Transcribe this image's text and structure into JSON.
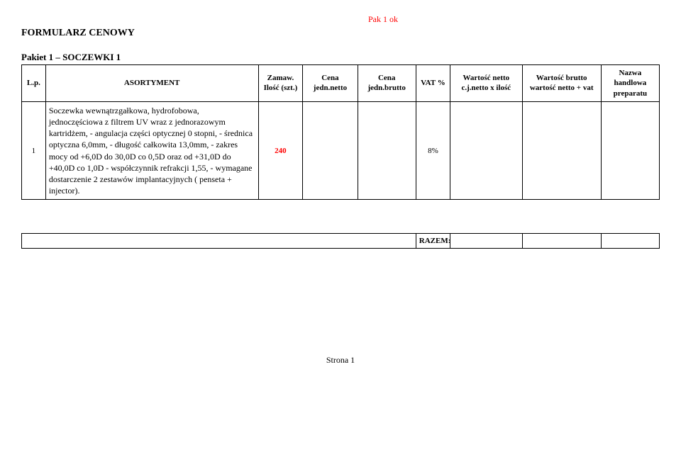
{
  "top_note": "Pak 1 ok",
  "form_title": "FORMULARZ CENOWY",
  "packet_title": "Pakiet 1 – SOCZEWKI 1",
  "headers": {
    "lp": "L.p.",
    "asortyment": "ASORTYMENT",
    "qty": "Zamaw. Ilość (szt.)",
    "cena_netto": "Cena jedn.netto",
    "cena_brutto": "Cena jedn.brutto",
    "vat": "VAT %",
    "wartosc_netto": "Wartość netto c.j.netto x ilość",
    "wartosc_brutto": "Wartość brutto wartość netto + vat",
    "nazwa": "Nazwa handlowa preparatu"
  },
  "rows": [
    {
      "lp": "1",
      "desc": "Soczewka wewnątrzgałkowa, hydrofobowa, jednoczęściowa z filtrem UV wraz z jednorazowym kartridżem,                           - angulacja części optycznej 0 stopni,               - średnica optyczna 6,0mm,                             - długość całkowita 13,0mm,                            - zakres mocy od +6,0D do 30,0D co 0,5D oraz od +31,0D do +40,0D co 1,0D                   - współczynnik refrakcji 1,55,                    - wymagane dostarczenie 2 zestawów implantacyjnych ( penseta +  injector).",
      "qty": "240",
      "vat": "8%"
    }
  ],
  "razem_label": "RAZEM:",
  "footer": "Strona 1",
  "colors": {
    "highlight": "#ff0000",
    "text": "#000000",
    "background": "#ffffff",
    "border": "#000000"
  }
}
